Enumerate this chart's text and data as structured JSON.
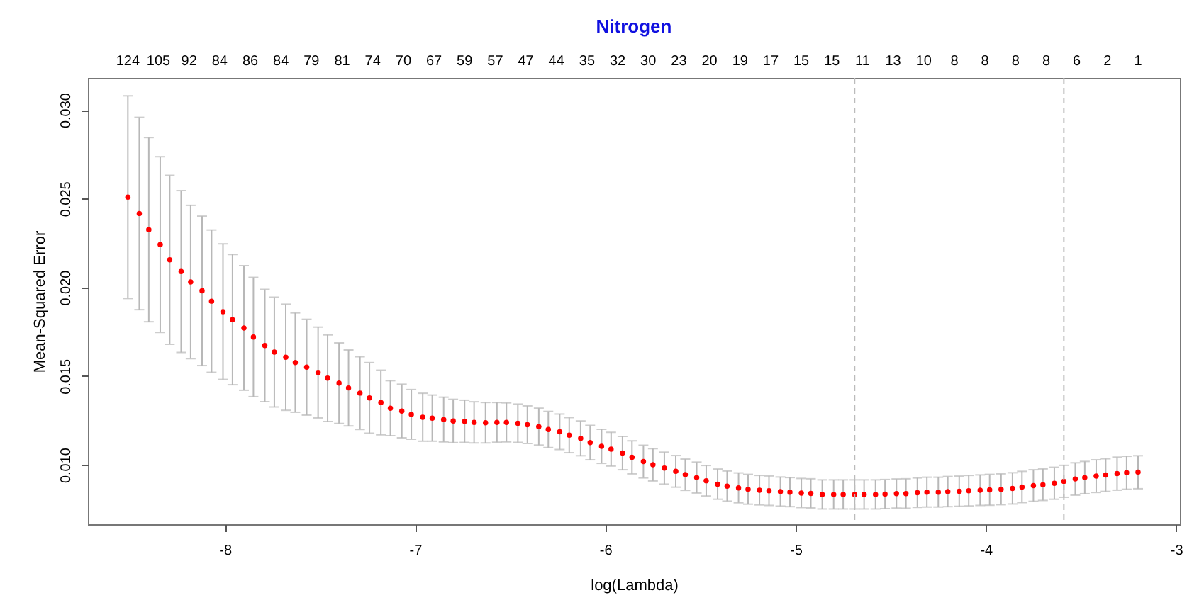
{
  "chart_data": {
    "type": "scatter",
    "title": "Nitrogen",
    "xlabel": "log(Lambda)",
    "ylabel": "Mean-Squared Error",
    "x": [
      -8.51,
      -8.45,
      -8.4,
      -8.34,
      -8.29,
      -8.23,
      -8.18,
      -8.12,
      -8.07,
      -8.01,
      -7.96,
      -7.9,
      -7.85,
      -7.79,
      -7.74,
      -7.68,
      -7.63,
      -7.57,
      -7.51,
      -7.46,
      -7.4,
      -7.35,
      -7.29,
      -7.24,
      -7.18,
      -7.13,
      -7.07,
      -7.02,
      -6.96,
      -6.91,
      -6.85,
      -6.8,
      -6.74,
      -6.69,
      -6.63,
      -6.57,
      -6.52,
      -6.46,
      -6.41,
      -6.35,
      -6.3,
      -6.24,
      -6.19,
      -6.13,
      -6.08,
      -6.02,
      -5.97,
      -5.91,
      -5.86,
      -5.8,
      -5.75,
      -5.69,
      -5.63,
      -5.58,
      -5.52,
      -5.47,
      -5.41,
      -5.36,
      -5.3,
      -5.25,
      -5.19,
      -5.14,
      -5.08,
      -5.03,
      -4.97,
      -4.92,
      -4.86,
      -4.8,
      -4.75,
      -4.69,
      -4.64,
      -4.58,
      -4.53,
      -4.47,
      -4.42,
      -4.36,
      -4.31,
      -4.25,
      -4.2,
      -4.14,
      -4.09,
      -4.03,
      -3.98,
      -3.92,
      -3.86,
      -3.81,
      -3.75,
      -3.7,
      -3.64,
      -3.59,
      -3.53,
      -3.48,
      -3.42,
      -3.37,
      -3.31,
      -3.26,
      -3.2
    ],
    "series": [
      {
        "color": "#ff0000",
        "values": [
          0.02508,
          0.02416,
          0.02325,
          0.02241,
          0.02155,
          0.02089,
          0.0203,
          0.0198,
          0.01922,
          0.01863,
          0.01818,
          0.01771,
          0.0172,
          0.01672,
          0.01635,
          0.01606,
          0.01576,
          0.0155,
          0.0152,
          0.01488,
          0.0146,
          0.01433,
          0.01404,
          0.01377,
          0.01351,
          0.01319,
          0.01303,
          0.01284,
          0.01268,
          0.01263,
          0.01255,
          0.01247,
          0.01245,
          0.01239,
          0.01237,
          0.01239,
          0.01239,
          0.01234,
          0.01226,
          0.01215,
          0.01199,
          0.01186,
          0.01167,
          0.01149,
          0.01125,
          0.01104,
          0.01088,
          0.01066,
          0.01042,
          0.01018,
          0.01,
          0.00981,
          0.00963,
          0.00944,
          0.00928,
          0.0091,
          0.00891,
          0.0088,
          0.0087,
          0.00862,
          0.00857,
          0.00854,
          0.00849,
          0.00846,
          0.00841,
          0.00839,
          0.00833,
          0.00833,
          0.00833,
          0.00833,
          0.00833,
          0.00833,
          0.00835,
          0.00838,
          0.00838,
          0.00843,
          0.00846,
          0.00846,
          0.00849,
          0.00851,
          0.00854,
          0.00857,
          0.00859,
          0.00862,
          0.00867,
          0.00875,
          0.00883,
          0.00888,
          0.00896,
          0.00907,
          0.0092,
          0.00928,
          0.00936,
          0.00942,
          0.0095,
          0.00955,
          0.00958
        ],
        "errors": [
          0.00571,
          0.00542,
          0.00519,
          0.00495,
          0.00476,
          0.00456,
          0.00432,
          0.00421,
          0.00401,
          0.00382,
          0.00367,
          0.00351,
          0.00336,
          0.00316,
          0.00309,
          0.00299,
          0.0028,
          0.0027,
          0.00256,
          0.00244,
          0.00227,
          0.00214,
          0.00205,
          0.00199,
          0.00182,
          0.00155,
          0.00151,
          0.0014,
          0.00135,
          0.0013,
          0.00126,
          0.00122,
          0.00119,
          0.00116,
          0.00114,
          0.00112,
          0.0011,
          0.00108,
          0.00106,
          0.00104,
          0.00102,
          0.001,
          0.00099,
          0.00098,
          0.00097,
          0.00096,
          0.00095,
          0.00094,
          0.00093,
          0.00092,
          0.00091,
          0.0009,
          0.00089,
          0.00088,
          0.00087,
          0.00086,
          0.00085,
          0.00085,
          0.00084,
          0.00084,
          0.00083,
          0.00083,
          0.00082,
          0.00082,
          0.00082,
          0.00082,
          0.00082,
          0.00082,
          0.00082,
          0.00082,
          0.00082,
          0.00082,
          0.00082,
          0.00082,
          0.00083,
          0.00083,
          0.00084,
          0.00084,
          0.00085,
          0.00085,
          0.00086,
          0.00086,
          0.00087,
          0.00087,
          0.00088,
          0.00088,
          0.00089,
          0.00089,
          0.0009,
          0.0009,
          0.00091,
          0.00091,
          0.00092,
          0.00092,
          0.00093,
          0.00093,
          0.00093
        ]
      }
    ],
    "marker": "circle",
    "xlim": [
      -8.72,
      -2.98
    ],
    "xticks": [
      -8,
      -7,
      -6,
      -5,
      -4,
      -3
    ],
    "ylim": [
      0.00665,
      0.0318
    ],
    "yticks": [
      {
        "value": 0.01,
        "label": "0.010"
      },
      {
        "value": 0.015,
        "label": "0.015"
      },
      {
        "value": 0.02,
        "label": "0.020"
      },
      {
        "value": 0.025,
        "label": "0.025"
      },
      {
        "value": 0.03,
        "label": "0.030"
      }
    ],
    "annotations": [
      "124",
      "105",
      "92",
      "84",
      "86",
      "84",
      "79",
      "81",
      "74",
      "70",
      "67",
      "59",
      "57",
      "47",
      "44",
      "35",
      "32",
      "30",
      "23",
      "20",
      "19",
      "17",
      "15",
      "15",
      "11",
      "13",
      "10",
      "8",
      "8",
      "8",
      "8",
      "6",
      "2",
      "1"
    ],
    "ref_lines": [
      {
        "axis": "x",
        "value": -4.69,
        "color": "#bbbbbb",
        "line_style": "dashed"
      },
      {
        "axis": "x",
        "value": -3.59,
        "color": "#bbbbbb",
        "line_style": "dashed"
      }
    ]
  }
}
